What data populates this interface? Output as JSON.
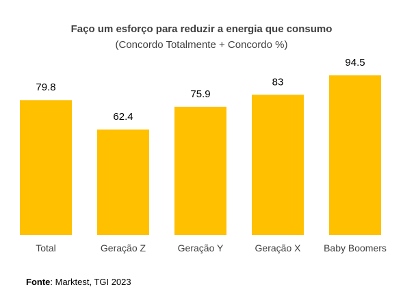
{
  "title": "Faço um esforço para reduzir a energia que consumo",
  "subtitle": "(Concordo Totalmente + Concordo %)",
  "source": {
    "label": "Fonte",
    "text": ": Marktest, TGI 2023"
  },
  "chart_data": {
    "type": "bar",
    "categories": [
      "Total",
      "Geração Z",
      "Geração Y",
      "Geração X",
      "Baby Boomers"
    ],
    "values": [
      79.8,
      62.4,
      75.9,
      83,
      94.5
    ],
    "data_labels": [
      "79.8",
      "62.4",
      "75.9",
      "83",
      "94.5"
    ],
    "title": "Faço um esforço para reduzir a energia que consumo",
    "subtitle": "(Concordo Totalmente + Concordo %)",
    "xlabel": "",
    "ylabel": "",
    "ylim": [
      0,
      100
    ],
    "grid": false,
    "legend": "none",
    "bar_color": "#FFC000"
  }
}
